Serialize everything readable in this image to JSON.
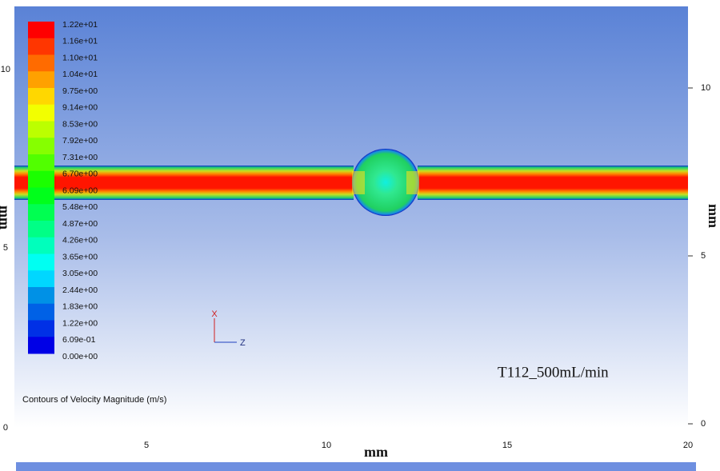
{
  "caption": "Contours of Velocity Magnitude (m/s)",
  "annotation": "T112_500mL/min",
  "colorbar": {
    "labels": [
      "1.22e+01",
      "1.16e+01",
      "1.10e+01",
      "1.04e+01",
      "9.75e+00",
      "9.14e+00",
      "8.53e+00",
      "7.92e+00",
      "7.31e+00",
      "6.70e+00",
      "6.09e+00",
      "5.48e+00",
      "4.87e+00",
      "4.26e+00",
      "3.65e+00",
      "3.05e+00",
      "2.44e+00",
      "1.83e+00",
      "1.22e+00",
      "6.09e-01",
      "0.00e+00"
    ]
  },
  "axes": {
    "left": {
      "label": "mm",
      "ticks": [
        "10",
        "5",
        "0"
      ]
    },
    "right": {
      "label": "mm",
      "ticks": [
        "10",
        "5",
        "0"
      ]
    },
    "bottom": {
      "label": "mm",
      "ticks": [
        "5",
        "10",
        "15",
        "20"
      ]
    },
    "triad": {
      "x": "X",
      "z": "Z"
    }
  }
}
